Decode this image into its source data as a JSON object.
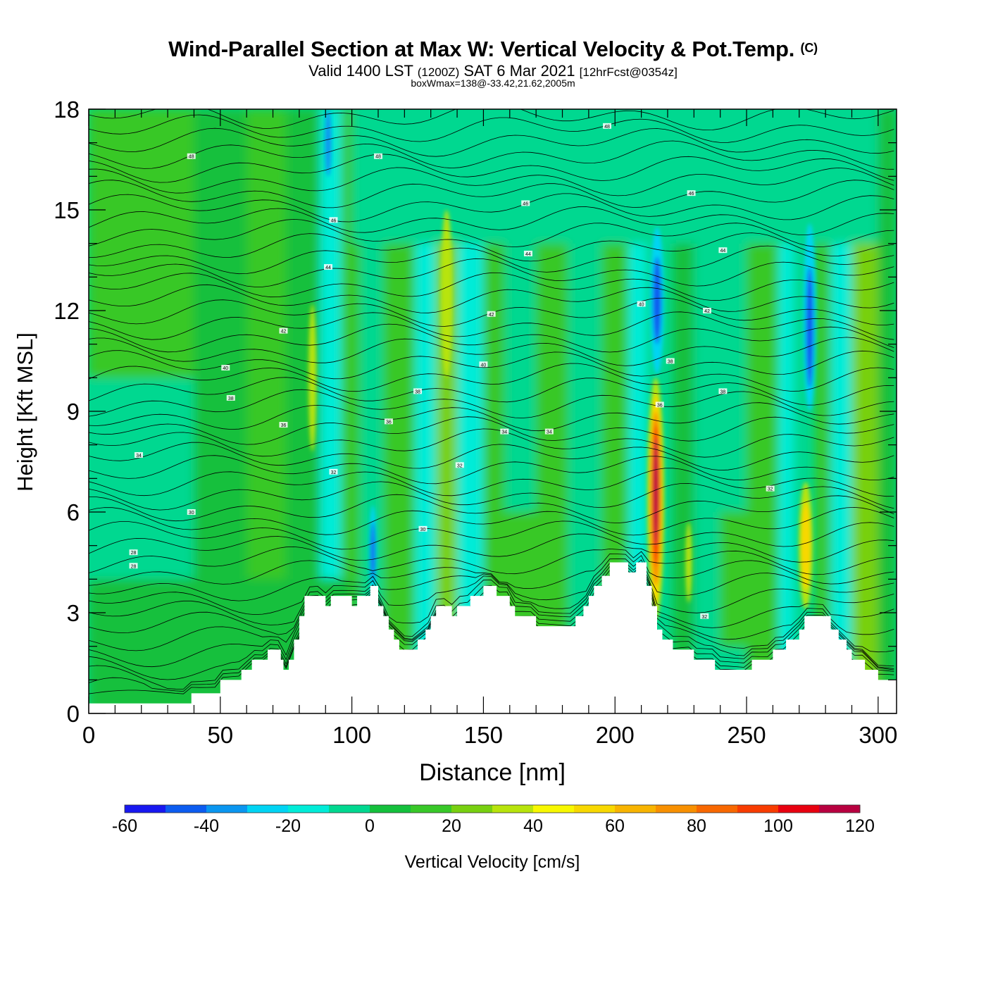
{
  "header": {
    "title": "Wind-Parallel Section at Max W: Vertical Velocity & Pot.Temp.",
    "copyright": "(C)",
    "subtitle_a": "Valid 1400 LST",
    "subtitle_b": "(1200Z)",
    "subtitle_c": "SAT 6 Mar 2021",
    "subtitle_d": "[12hrFcst@0354z]",
    "subtitle2": "boxWmax=138@-33.42,21.62,2005m"
  },
  "chart_data": {
    "type": "heatmap",
    "xlabel": "Distance [nm]",
    "ylabel": "Height [Kft MSL]",
    "xlim": [
      0,
      307
    ],
    "ylim": [
      0,
      18
    ],
    "x_ticks": [
      0,
      50,
      100,
      150,
      200,
      250,
      300
    ],
    "y_ticks": [
      0,
      3,
      6,
      9,
      12,
      15,
      18
    ],
    "colorbar": {
      "label": "Vertical Velocity [cm/s]",
      "levels": [
        -60,
        -50,
        -40,
        -30,
        -20,
        -10,
        0,
        10,
        20,
        30,
        40,
        50,
        60,
        70,
        80,
        90,
        100,
        110,
        120,
        130
      ],
      "tick_labels": [
        "-60",
        "-40",
        "-20",
        "0",
        "20",
        "40",
        "60",
        "80",
        "100",
        "120"
      ],
      "colors": [
        "#1818f0",
        "#0c5cf0",
        "#0a96f0",
        "#00d4f4",
        "#00ecd8",
        "#00d890",
        "#14c03c",
        "#38c828",
        "#78d010",
        "#b8e40c",
        "#f8f800",
        "#f8d800",
        "#f8b400",
        "#f89000",
        "#f86800",
        "#f83c00",
        "#e80010",
        "#b80040"
      ]
    },
    "terrain_profile": {
      "x": [
        0,
        5,
        10,
        15,
        20,
        25,
        30,
        35,
        38,
        39,
        40,
        42,
        45,
        48,
        50,
        52,
        55,
        58,
        60,
        62,
        65,
        68,
        70,
        72,
        73,
        74,
        75,
        76,
        78,
        80,
        82,
        85,
        88,
        90,
        92,
        95,
        98,
        100,
        102,
        105,
        107,
        108,
        110,
        112,
        114,
        116,
        118,
        120,
        122,
        125,
        128,
        130,
        132,
        135,
        138,
        140,
        142,
        145,
        148,
        150,
        152,
        155,
        158,
        160,
        162,
        165,
        168,
        170,
        172,
        175,
        178,
        180,
        182,
        185,
        188,
        190,
        192,
        195,
        198,
        200,
        202,
        205,
        208,
        210,
        212,
        214,
        216,
        218,
        220,
        222,
        225,
        228,
        230,
        232,
        235,
        238,
        240,
        242,
        245,
        248,
        250,
        252,
        255,
        258,
        260,
        262,
        265,
        268,
        270,
        272,
        275,
        278,
        280,
        282,
        285,
        288,
        290,
        292,
        295,
        298,
        300,
        302,
        305,
        307
      ],
      "h": [
        0.3,
        0.3,
        0.3,
        0.3,
        0.3,
        0.3,
        0.3,
        0.3,
        0.3,
        0.6,
        0.6,
        0.6,
        0.6,
        0.6,
        1.0,
        1.0,
        1.0,
        1.3,
        1.3,
        1.6,
        1.6,
        1.9,
        1.9,
        1.9,
        1.6,
        1.3,
        1.3,
        1.6,
        2.2,
        2.9,
        3.5,
        3.5,
        3.5,
        3.2,
        3.5,
        3.5,
        3.5,
        3.2,
        3.5,
        3.5,
        3.8,
        3.8,
        3.2,
        2.9,
        2.5,
        2.2,
        1.9,
        1.9,
        1.9,
        2.2,
        2.5,
        2.9,
        3.2,
        3.2,
        2.9,
        3.2,
        3.2,
        3.5,
        3.5,
        3.8,
        3.8,
        3.5,
        3.5,
        3.2,
        2.9,
        2.9,
        2.9,
        2.6,
        2.6,
        2.6,
        2.6,
        2.6,
        2.6,
        2.9,
        3.2,
        3.5,
        3.8,
        4.1,
        4.5,
        4.5,
        4.5,
        4.2,
        4.5,
        4.5,
        3.8,
        3.2,
        2.5,
        2.2,
        2.2,
        1.9,
        1.9,
        1.9,
        1.6,
        1.6,
        1.6,
        1.3,
        1.3,
        1.3,
        1.3,
        1.3,
        1.3,
        1.6,
        1.6,
        1.6,
        1.9,
        1.9,
        2.2,
        2.2,
        2.5,
        2.9,
        2.9,
        2.9,
        2.9,
        2.5,
        2.2,
        1.9,
        1.6,
        1.6,
        1.3,
        1.3,
        1.0,
        1.0,
        1.0,
        1.0
      ]
    },
    "updraft_max": {
      "value": 138,
      "x": 215,
      "y": 6.6
    },
    "isentrope_labels": [
      {
        "x": 39,
        "y": 16.6,
        "text": "48"
      },
      {
        "x": 110,
        "y": 16.6,
        "text": "48"
      },
      {
        "x": 197,
        "y": 17.5,
        "text": "48"
      },
      {
        "x": 93,
        "y": 14.7,
        "text": "46"
      },
      {
        "x": 166,
        "y": 15.2,
        "text": "46"
      },
      {
        "x": 229,
        "y": 15.5,
        "text": "46"
      },
      {
        "x": 91,
        "y": 13.3,
        "text": "44"
      },
      {
        "x": 167,
        "y": 13.7,
        "text": "44"
      },
      {
        "x": 241,
        "y": 13.8,
        "text": "44"
      },
      {
        "x": 74,
        "y": 11.4,
        "text": "42"
      },
      {
        "x": 153,
        "y": 11.9,
        "text": "42"
      },
      {
        "x": 235,
        "y": 12.0,
        "text": "42"
      },
      {
        "x": 52,
        "y": 10.3,
        "text": "40"
      },
      {
        "x": 150,
        "y": 10.4,
        "text": "40"
      },
      {
        "x": 210,
        "y": 12.2,
        "text": "40"
      },
      {
        "x": 54,
        "y": 9.4,
        "text": "38"
      },
      {
        "x": 125,
        "y": 9.6,
        "text": "38"
      },
      {
        "x": 221,
        "y": 10.5,
        "text": "38"
      },
      {
        "x": 241,
        "y": 9.6,
        "text": "38"
      },
      {
        "x": 74,
        "y": 8.6,
        "text": "36"
      },
      {
        "x": 114,
        "y": 8.7,
        "text": "36"
      },
      {
        "x": 217,
        "y": 9.2,
        "text": "36"
      },
      {
        "x": 19,
        "y": 7.7,
        "text": "34"
      },
      {
        "x": 158,
        "y": 8.4,
        "text": "34"
      },
      {
        "x": 175,
        "y": 8.4,
        "text": "34"
      },
      {
        "x": 93,
        "y": 7.2,
        "text": "32"
      },
      {
        "x": 141,
        "y": 7.4,
        "text": "32"
      },
      {
        "x": 259,
        "y": 6.7,
        "text": "32"
      },
      {
        "x": 39,
        "y": 6.0,
        "text": "30"
      },
      {
        "x": 127,
        "y": 5.5,
        "text": "30"
      },
      {
        "x": 234,
        "y": 2.9,
        "text": "32"
      },
      {
        "x": 17,
        "y": 4.8,
        "text": "28"
      },
      {
        "x": 17,
        "y": 4.4,
        "text": "28"
      }
    ]
  }
}
